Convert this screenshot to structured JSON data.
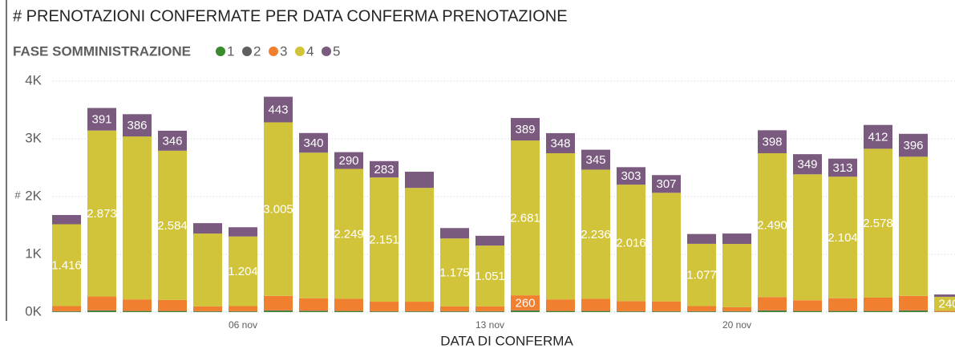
{
  "chart_data": {
    "type": "stacked_bar",
    "title": "# PRENOTAZIONI CONFERMATE PER DATA CONFERMA PRENOTAZIONE",
    "legend_title": "FASE SOMMINISTRAZIONE",
    "x_label": "DATA DI CONFERMA",
    "y_label": "#",
    "categories": [
      null,
      null,
      null,
      null,
      null,
      "06 nov",
      null,
      null,
      null,
      null,
      null,
      null,
      "13 nov",
      null,
      null,
      null,
      null,
      null,
      null,
      "20 nov",
      null,
      null,
      null,
      null,
      null,
      null
    ],
    "series": [
      {
        "name": "1",
        "color": "#3a8a2e",
        "values": [
          10,
          20,
          15,
          15,
          10,
          10,
          20,
          15,
          15,
          10,
          10,
          10,
          10,
          20,
          15,
          15,
          10,
          10,
          10,
          10,
          20,
          15,
          15,
          15,
          20,
          5
        ]
      },
      {
        "name": "2",
        "color": "#5f5f5f",
        "values": [
          5,
          10,
          5,
          5,
          5,
          5,
          10,
          10,
          5,
          5,
          5,
          5,
          5,
          10,
          5,
          5,
          5,
          5,
          5,
          5,
          10,
          5,
          5,
          5,
          10,
          0
        ]
      },
      {
        "name": "3",
        "color": "#f07f2f",
        "values": [
          90,
          240,
          200,
          190,
          85,
          90,
          250,
          215,
          210,
          165,
          165,
          85,
          85,
          260,
          200,
          210,
          175,
          170,
          90,
          70,
          230,
          185,
          220,
          230,
          250,
          20
        ],
        "value_labels": [
          null,
          null,
          null,
          null,
          null,
          null,
          null,
          null,
          null,
          null,
          null,
          null,
          null,
          "260",
          null,
          null,
          null,
          null,
          null,
          null,
          null,
          null,
          null,
          null,
          null,
          null
        ]
      },
      {
        "name": "4",
        "color": "#d1c43b",
        "values": [
          1416,
          2873,
          2820,
          2584,
          1260,
          1204,
          3005,
          2520,
          2249,
          2151,
          1970,
          1175,
          1051,
          2681,
          2530,
          2236,
          2016,
          1880,
          1077,
          1095,
          2490,
          2180,
          2104,
          2578,
          2410,
          240
        ],
        "value_labels": [
          "1.416",
          "2.873",
          null,
          "2.584",
          null,
          "1.204",
          "3.005",
          null,
          "2.249",
          "2.151",
          null,
          "1.175",
          "1.051",
          "2.681",
          null,
          "2.236",
          "2.016",
          null,
          "1.077",
          null,
          "2.490",
          null,
          "2.104",
          "2.578",
          null,
          "240"
        ]
      },
      {
        "name": "5",
        "color": "#7b5a7f",
        "values": [
          160,
          391,
          386,
          346,
          180,
          160,
          443,
          340,
          290,
          283,
          280,
          180,
          170,
          389,
          348,
          345,
          303,
          307,
          170,
          180,
          398,
          349,
          313,
          412,
          396,
          40
        ],
        "value_labels": [
          null,
          "391",
          "386",
          "346",
          null,
          null,
          "443",
          "340",
          "290",
          "283",
          null,
          null,
          null,
          "389",
          "348",
          "345",
          "303",
          "307",
          null,
          null,
          "398",
          "349",
          "313",
          "412",
          "396",
          null
        ]
      }
    ],
    "ylim": [
      0,
      4000
    ],
    "yticks": [
      {
        "value": 0,
        "label": "0K"
      },
      {
        "value": 1000,
        "label": "1K"
      },
      {
        "value": 2000,
        "label": "2K"
      },
      {
        "value": 3000,
        "label": "3K"
      },
      {
        "value": 4000,
        "label": "4K"
      }
    ],
    "grid": true
  }
}
